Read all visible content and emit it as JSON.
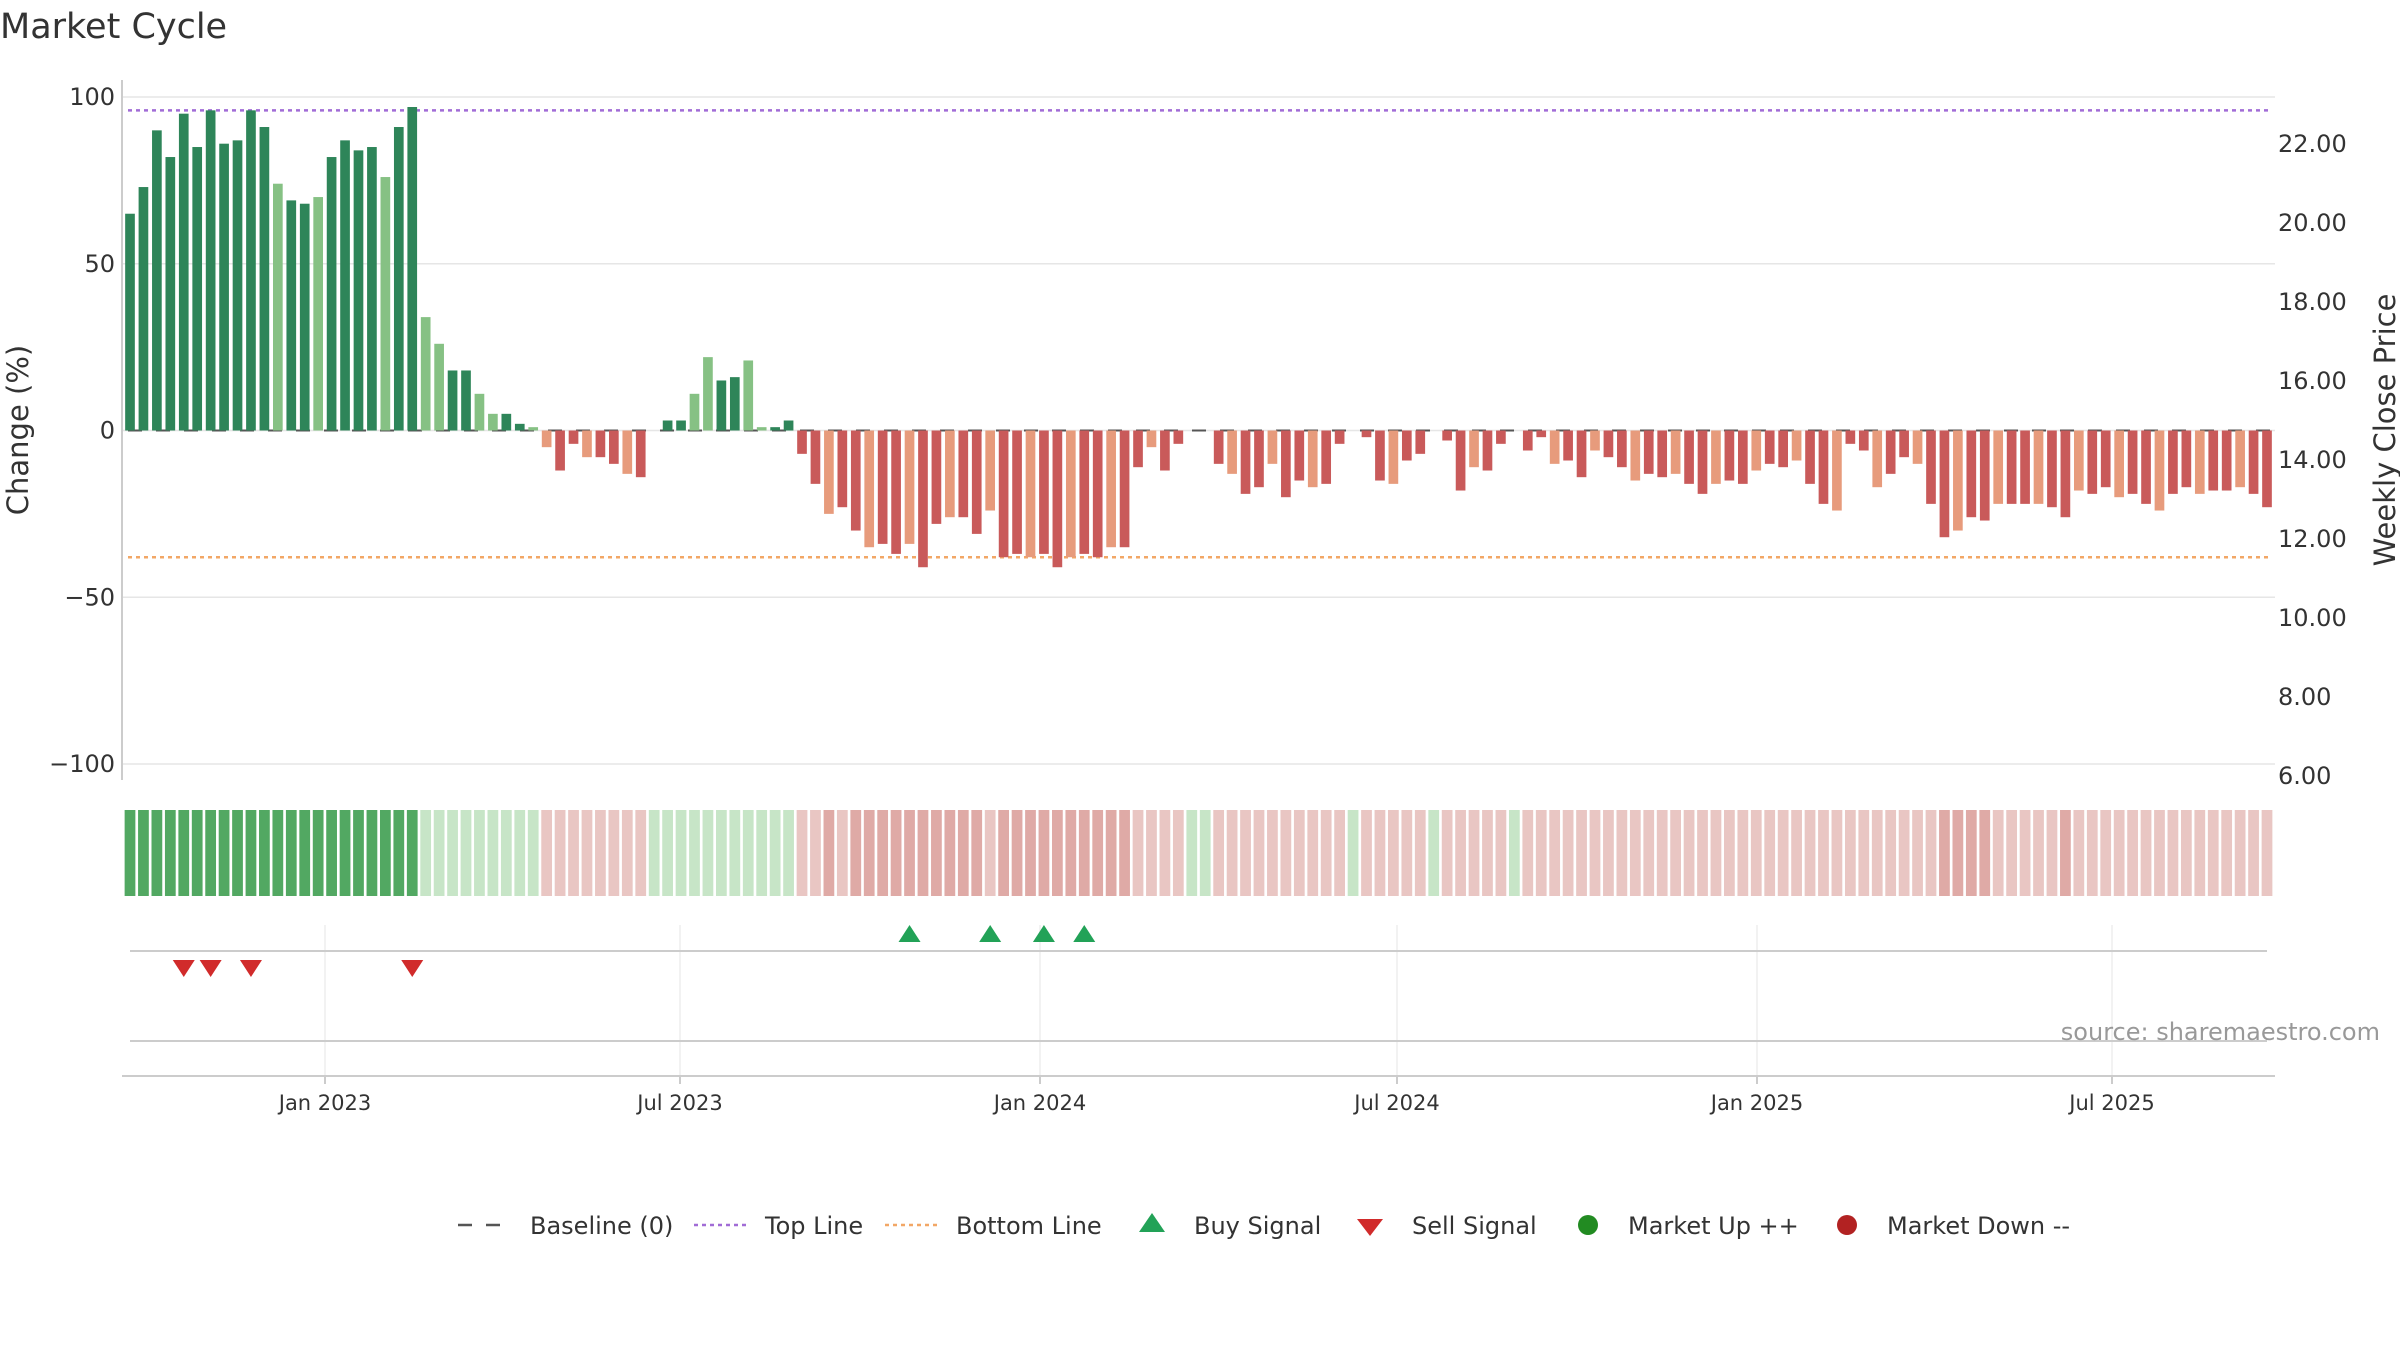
{
  "title": "Market Cycle",
  "source_text": "source: sharemaestro.com",
  "chart_data": {
    "type": "bar",
    "title": "Market Cycle",
    "ylabel": "Change (%)",
    "y2label": "Weekly Close Price",
    "ylim": [
      -100,
      100
    ],
    "y2lim": [
      6,
      23
    ],
    "yticks": [
      "100",
      "50",
      "0",
      "−50",
      "−100"
    ],
    "y2ticks": [
      "22.00",
      "20.00",
      "18.00",
      "16.00",
      "14.00",
      "12.00",
      "10.00",
      "8.00",
      "6.00"
    ],
    "xticks": [
      "Jan 2023",
      "Jul 2023",
      "Jan 2024",
      "Jul 2024",
      "Jan 2025",
      "Jul 2025"
    ],
    "top_line": 96,
    "bottom_line": -38,
    "baseline": 0,
    "grid": true,
    "legend_position": "bottom",
    "values": [
      65,
      73,
      90,
      82,
      95,
      85,
      96,
      86,
      87,
      96,
      91,
      74,
      69,
      68,
      70,
      82,
      87,
      84,
      85,
      76,
      91,
      97,
      34,
      26,
      18,
      18,
      11,
      5,
      5,
      2,
      1,
      -5,
      -12,
      -4,
      -8,
      -8,
      -10,
      -13,
      -14,
      0,
      3,
      3,
      11,
      22,
      15,
      16,
      21,
      1,
      1,
      3,
      -7,
      -16,
      -25,
      -23,
      -30,
      -35,
      -34,
      -37,
      -34,
      -41,
      -28,
      -26,
      -26,
      -31,
      -24,
      -38,
      -37,
      -38,
      -37,
      -41,
      -38,
      -37,
      -38,
      -35,
      -35,
      -11,
      -5,
      -12,
      -4,
      0,
      0,
      -10,
      -13,
      -19,
      -17,
      -10,
      -20,
      -15,
      -17,
      -16,
      -4,
      0,
      -2,
      -15,
      -16,
      -9,
      -7,
      0,
      -3,
      -18,
      -11,
      -12,
      -4,
      0,
      -6,
      -2,
      -10,
      -9,
      -14,
      -6,
      -8,
      -11,
      -15,
      -13,
      -14,
      -13,
      -16,
      -19,
      -16,
      -15,
      -16,
      -12,
      -10,
      -11,
      -9,
      -16,
      -22,
      -24,
      -4,
      -6,
      -17,
      -13,
      -8,
      -10,
      -22,
      -32,
      -30,
      -26,
      -27,
      -22,
      -22,
      -22,
      -22,
      -23,
      -26,
      -18,
      -19,
      -17,
      -20,
      -19,
      -22,
      -24,
      -19,
      -17,
      -19,
      -18,
      -18,
      -17,
      -19,
      -23
    ],
    "signals": {
      "buy_bar_index": [
        58,
        64,
        68,
        71
      ],
      "sell_bar_index": [
        4,
        6,
        9,
        21
      ]
    },
    "colors": {
      "up_dark": "#2e8559",
      "up_light": "#86c184",
      "down_dark": "#c95a5a",
      "down_light": "#e79b7c",
      "top_line": "#a16cd6",
      "bottom_line": "#f2a766",
      "baseline": "#555555",
      "buy": "#22a257",
      "sell": "#d12b2b",
      "market_up": "#228b22",
      "market_down": "#b22222",
      "band_strong_up": "#52a862",
      "band_up": "#c7e5c7",
      "band_down": "#e9c6c3",
      "band_strong_down": "#dfaaa6"
    }
  },
  "legend": [
    {
      "key": "baseline",
      "label": "Baseline (0)",
      "icon": "dash-line-icon"
    },
    {
      "key": "top",
      "label": "Top Line",
      "icon": "dotted-line-icon"
    },
    {
      "key": "bottom",
      "label": "Bottom Line",
      "icon": "dotted-line-icon"
    },
    {
      "key": "buy",
      "label": "Buy Signal",
      "icon": "triangle-up-icon"
    },
    {
      "key": "sell",
      "label": "Sell Signal",
      "icon": "triangle-down-icon"
    },
    {
      "key": "up",
      "label": "Market Up ++",
      "icon": "circle-icon"
    },
    {
      "key": "down",
      "label": "Market Down --",
      "icon": "circle-icon"
    }
  ]
}
